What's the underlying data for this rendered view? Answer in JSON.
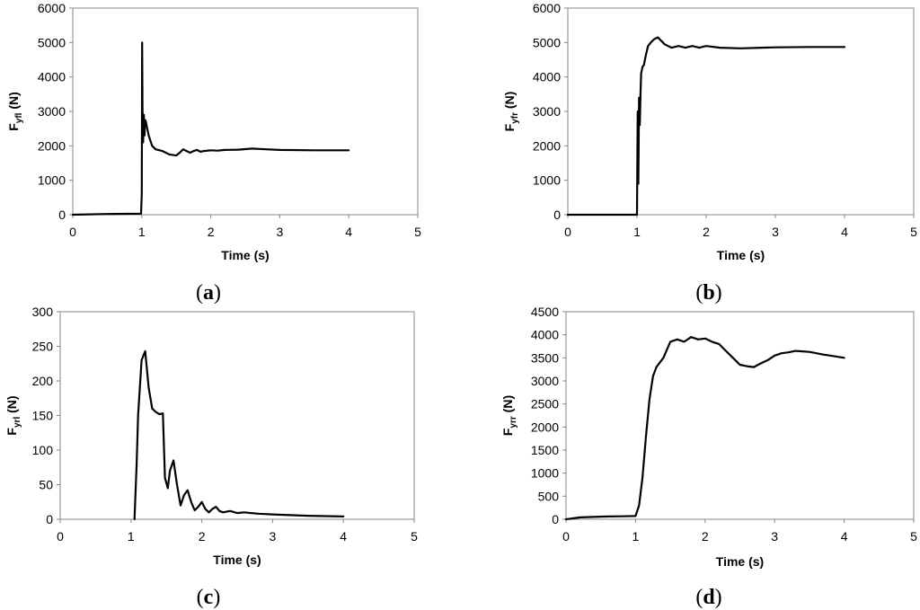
{
  "chart_data": [
    {
      "id": "a",
      "type": "line",
      "panel_label": "a",
      "xlabel": "Time (s)",
      "ylabel_main": "F",
      "ylabel_sub": "yfl",
      "ylabel_unit": " (N)",
      "xlim": [
        0,
        5
      ],
      "ylim": [
        0,
        6000
      ],
      "xticks": [
        0,
        1,
        2,
        3,
        4,
        5
      ],
      "yticks": [
        0,
        1000,
        2000,
        3000,
        4000,
        5000,
        6000
      ],
      "series": [
        {
          "x": [
            0,
            0.5,
            0.99,
            1.0,
            1.005,
            1.01,
            1.02,
            1.03,
            1.04,
            1.05,
            1.06,
            1.08,
            1.1,
            1.15,
            1.2,
            1.3,
            1.4,
            1.5,
            1.55,
            1.6,
            1.65,
            1.7,
            1.75,
            1.8,
            1.85,
            1.9,
            2.0,
            2.1,
            2.2,
            2.4,
            2.6,
            2.8,
            3.0,
            3.5,
            4.0
          ],
          "y": [
            0,
            20,
            30,
            600,
            5000,
            3100,
            2100,
            2900,
            2300,
            2750,
            2700,
            2500,
            2300,
            2000,
            1900,
            1850,
            1750,
            1720,
            1800,
            1900,
            1850,
            1800,
            1850,
            1880,
            1830,
            1850,
            1870,
            1860,
            1880,
            1890,
            1920,
            1900,
            1880,
            1870,
            1870
          ]
        }
      ]
    },
    {
      "id": "b",
      "type": "line",
      "panel_label": "b",
      "xlabel": "Time (s)",
      "ylabel_main": "F",
      "ylabel_sub": "yfr",
      "ylabel_unit": " (N)",
      "xlim": [
        0,
        5
      ],
      "ylim": [
        0,
        6000
      ],
      "xticks": [
        0,
        1,
        2,
        3,
        4,
        5
      ],
      "yticks": [
        0,
        1000,
        2000,
        3000,
        4000,
        5000,
        6000
      ],
      "series": [
        {
          "x": [
            0,
            0.1,
            0.2,
            0.95,
            1.0,
            1.01,
            1.02,
            1.03,
            1.04,
            1.05,
            1.06,
            1.08,
            1.1,
            1.13,
            1.16,
            1.2,
            1.25,
            1.3,
            1.35,
            1.4,
            1.5,
            1.6,
            1.7,
            1.8,
            1.9,
            2.0,
            2.2,
            2.5,
            2.8,
            3.0,
            3.5,
            4.0
          ],
          "y": [
            0,
            0,
            0,
            0,
            0,
            3000,
            900,
            3400,
            2600,
            3500,
            4100,
            4300,
            4350,
            4650,
            4900,
            5000,
            5100,
            5150,
            5050,
            4950,
            4850,
            4900,
            4850,
            4900,
            4850,
            4900,
            4850,
            4830,
            4850,
            4860,
            4870,
            4870
          ]
        }
      ]
    },
    {
      "id": "c",
      "type": "line",
      "panel_label": "c",
      "xlabel": "Time (s)",
      "ylabel_main": "F",
      "ylabel_sub": "yrl",
      "ylabel_unit": " (N)",
      "xlim": [
        0,
        5
      ],
      "ylim": [
        0,
        300
      ],
      "xticks": [
        0,
        1,
        2,
        3,
        4,
        5
      ],
      "yticks": [
        0,
        50,
        100,
        150,
        200,
        250,
        300
      ],
      "series": [
        {
          "x": [
            1.05,
            1.08,
            1.1,
            1.15,
            1.2,
            1.25,
            1.3,
            1.35,
            1.4,
            1.45,
            1.48,
            1.52,
            1.55,
            1.6,
            1.65,
            1.7,
            1.75,
            1.8,
            1.85,
            1.9,
            1.95,
            2.0,
            2.05,
            2.1,
            2.15,
            2.2,
            2.25,
            2.3,
            2.4,
            2.5,
            2.6,
            2.7,
            2.8,
            3.0,
            3.5,
            4.0
          ],
          "y": [
            0,
            80,
            150,
            230,
            243,
            190,
            160,
            155,
            152,
            153,
            60,
            45,
            70,
            85,
            50,
            20,
            35,
            42,
            25,
            13,
            18,
            25,
            15,
            10,
            15,
            18,
            12,
            10,
            12,
            9,
            10,
            9,
            8,
            7,
            5,
            4
          ]
        }
      ]
    },
    {
      "id": "d",
      "type": "line",
      "panel_label": "d",
      "xlabel": "Time (s)",
      "ylabel_main": "F",
      "ylabel_sub": "yrr",
      "ylabel_unit": " (N)",
      "xlim": [
        0,
        5
      ],
      "ylim": [
        0,
        4500
      ],
      "xticks": [
        0,
        1,
        2,
        3,
        4,
        5
      ],
      "yticks": [
        0,
        500,
        1000,
        1500,
        2000,
        2500,
        3000,
        3500,
        4000,
        4500
      ],
      "series": [
        {
          "x": [
            0,
            0.1,
            0.2,
            0.4,
            0.6,
            0.8,
            1.0,
            1.05,
            1.1,
            1.15,
            1.2,
            1.25,
            1.3,
            1.4,
            1.5,
            1.6,
            1.7,
            1.8,
            1.9,
            2.0,
            2.1,
            2.2,
            2.3,
            2.4,
            2.5,
            2.6,
            2.7,
            2.8,
            2.9,
            3.0,
            3.1,
            3.2,
            3.3,
            3.4,
            3.5,
            3.6,
            3.7,
            3.8,
            4.0
          ],
          "y": [
            0,
            20,
            40,
            50,
            60,
            65,
            70,
            300,
            900,
            1800,
            2600,
            3100,
            3300,
            3500,
            3850,
            3900,
            3850,
            3950,
            3900,
            3920,
            3850,
            3800,
            3650,
            3500,
            3350,
            3320,
            3300,
            3380,
            3450,
            3550,
            3600,
            3620,
            3650,
            3640,
            3630,
            3600,
            3570,
            3550,
            3500
          ]
        }
      ]
    }
  ]
}
